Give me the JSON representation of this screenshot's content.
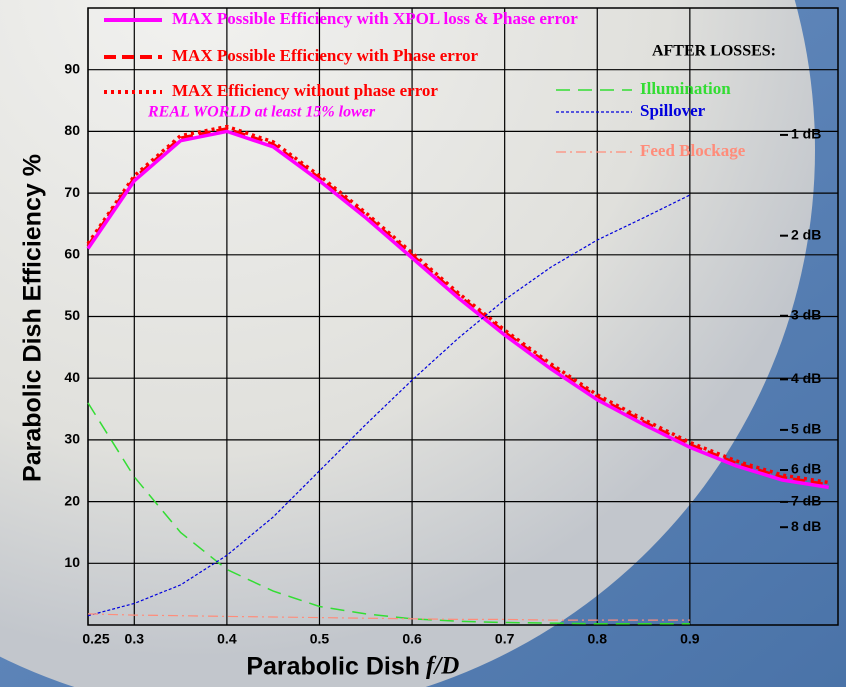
{
  "chart_data": {
    "type": "line",
    "y_label": "Parabolic Dish Efficiency %",
    "x_label": "Parabolic Dish",
    "x_label_italic": "f/D",
    "annotation": "REAL WORLD at least 15% lower",
    "losses_heading": "AFTER LOSSES:",
    "x": [
      0.25,
      0.3,
      0.35,
      0.4,
      0.45,
      0.5,
      0.55,
      0.6,
      0.65,
      0.7,
      0.75,
      0.8,
      0.85,
      0.9,
      0.95,
      1.0,
      1.05
    ],
    "xlim": [
      0.25,
      1.06
    ],
    "xticks": [
      0.25,
      0.3,
      0.4,
      0.5,
      0.6,
      0.7,
      0.8,
      0.9
    ],
    "ylim": [
      0,
      100
    ],
    "yticks": [
      10,
      20,
      30,
      40,
      50,
      60,
      70,
      80,
      90
    ],
    "y2lim": [
      0,
      100
    ],
    "y2ticks": [
      {
        "value": 79.43,
        "label": "1 dB"
      },
      {
        "value": 63.1,
        "label": "2 dB"
      },
      {
        "value": 50.12,
        "label": "3 dB"
      },
      {
        "value": 39.81,
        "label": "4 dB"
      },
      {
        "value": 31.62,
        "label": "5 dB"
      },
      {
        "value": 25.12,
        "label": "6 dB"
      },
      {
        "value": 19.95,
        "label": "7 dB"
      },
      {
        "value": 15.85,
        "label": "8 dB"
      }
    ],
    "grid": true,
    "series": [
      {
        "name": "MAX Efficiency without phase error",
        "color": "#ff0000",
        "style": "dotted",
        "legend": "main",
        "values": [
          61.8,
          72.8,
          79.3,
          80.8,
          78.3,
          72.8,
          66.8,
          60.3,
          53.8,
          47.8,
          42.3,
          37.3,
          33.3,
          29.6,
          26.6,
          24.3,
          23.1
        ]
      },
      {
        "name": "MAX Possible Efficiency with Phase error",
        "color": "#ff0000",
        "style": "dashed",
        "legend": "main",
        "values": [
          61.4,
          72.4,
          78.9,
          80.4,
          77.9,
          72.4,
          66.4,
          59.9,
          53.4,
          47.4,
          41.9,
          36.9,
          32.9,
          29.2,
          26.2,
          23.9,
          22.7
        ]
      },
      {
        "name": "MAX Possible Efficiency with XPOL loss & Phase error",
        "color": "#ff00ff",
        "style": "solid",
        "legend": "main",
        "values": [
          61,
          72,
          78.5,
          80,
          77.5,
          72,
          66,
          59.5,
          53,
          47,
          41.5,
          36.5,
          32.5,
          28.8,
          25.8,
          23.5,
          22.3
        ]
      },
      {
        "name": "Illumination",
        "color": "#33dd33",
        "style": "dashed",
        "legend": "losses",
        "values": [
          36,
          24,
          15,
          9,
          5.5,
          3,
          1.8,
          1,
          0.6,
          0.4,
          0.3,
          0.2,
          0.2,
          0.2,
          null,
          null,
          null
        ]
      },
      {
        "name": "Spillover",
        "color": "#0000dd",
        "style": "fine",
        "legend": "losses",
        "values": [
          1.5,
          3.5,
          6.5,
          11.3,
          17.5,
          25,
          32.5,
          39.7,
          46.5,
          52.7,
          58,
          62.4,
          66,
          69.7,
          null,
          null,
          null
        ]
      },
      {
        "name": "Feed Blockage",
        "color": "#ff8c7a",
        "style": "dashdot",
        "legend": "losses",
        "values": [
          1.8,
          1.6,
          1.5,
          1.4,
          1.3,
          1.2,
          1.1,
          1.0,
          0.9,
          0.9,
          0.8,
          0.8,
          0.8,
          0.8,
          null,
          null,
          null
        ]
      }
    ]
  }
}
